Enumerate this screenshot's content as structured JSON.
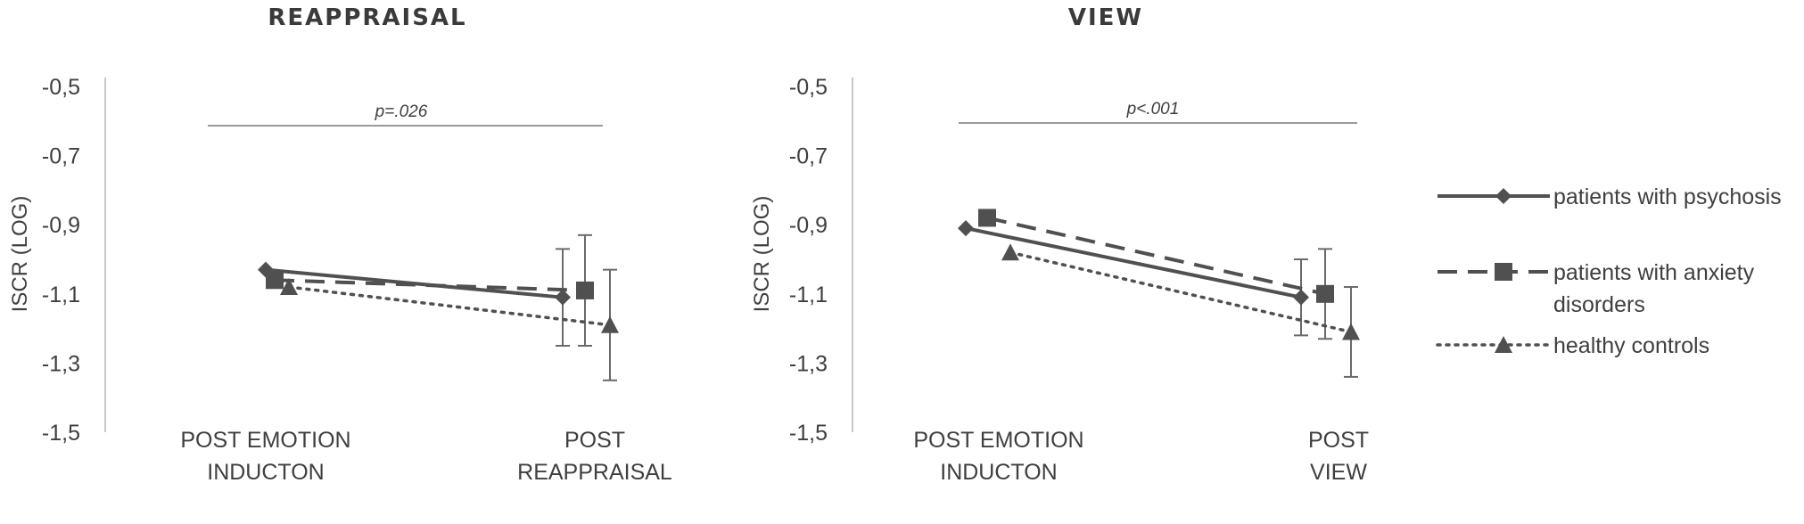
{
  "chart_data": [
    {
      "type": "line",
      "title": "REAPPRAISAL",
      "ylabel": "ISCR (LOG)",
      "ylim": [
        -1.5,
        -0.5
      ],
      "yticks": [
        "-0,5",
        "-0,7",
        "-0,9",
        "-1,1",
        "-1,3",
        "-1,5"
      ],
      "categories": [
        [
          "POST EMOTION",
          "INDUCTON"
        ],
        [
          "POST",
          "REAPPRAISAL"
        ]
      ],
      "annotation": "p=.026",
      "series": [
        {
          "name": "patients with psychosis",
          "values": [
            -1.03,
            -1.11
          ],
          "error": [
            null,
            0.14
          ]
        },
        {
          "name": "patients with anxiety disorders",
          "values": [
            -1.06,
            -1.09
          ],
          "error": [
            null,
            0.16
          ]
        },
        {
          "name": "healthy controls",
          "values": [
            -1.08,
            -1.19
          ],
          "error": [
            null,
            0.16
          ]
        }
      ]
    },
    {
      "type": "line",
      "title": "VIEW",
      "ylabel": "ISCR (LOG)",
      "ylim": [
        -1.5,
        -0.5
      ],
      "yticks": [
        "-0,5",
        "-0,7",
        "-0,9",
        "-1,1",
        "-1,3",
        "-1,5"
      ],
      "categories": [
        [
          "POST EMOTION",
          "INDUCTON"
        ],
        [
          "POST",
          "VIEW"
        ]
      ],
      "annotation": "p<.001",
      "series": [
        {
          "name": "patients with psychosis",
          "values": [
            -0.91,
            -1.11
          ],
          "error": [
            null,
            0.11
          ]
        },
        {
          "name": "patients with anxiety disorders",
          "values": [
            -0.88,
            -1.1
          ],
          "error": [
            null,
            0.13
          ]
        },
        {
          "name": "healthy controls",
          "values": [
            -0.98,
            -1.21
          ],
          "error": [
            null,
            0.13
          ]
        }
      ]
    }
  ],
  "legend": {
    "items": [
      {
        "lines": [
          "patients with psychosis"
        ],
        "style": "solid",
        "marker": "diamond"
      },
      {
        "lines": [
          "patients with anxiety",
          "disorders"
        ],
        "style": "dashed",
        "marker": "square"
      },
      {
        "lines": [
          "healthy controls"
        ],
        "style": "dotted",
        "marker": "triangle"
      }
    ]
  },
  "colors": {
    "series": "#505050",
    "axis": "#c8c8c8",
    "text": "#3f3f3f"
  }
}
